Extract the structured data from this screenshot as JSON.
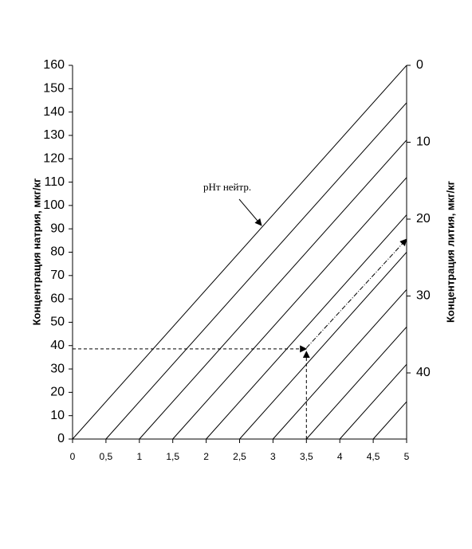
{
  "chart_data": {
    "type": "line",
    "ylabel": "Концентрация натрия, мкг/кг",
    "y2label": "Концентрация лития, мкг/кг",
    "annotation": "pHт нейтр.",
    "xlim": [
      0,
      5
    ],
    "ylim": [
      0,
      160
    ],
    "y2lim": [
      0,
      48.6
    ],
    "y2_inverted": true,
    "xticks": [
      0,
      {
        "value": 0.5,
        "label": "0,5"
      },
      1,
      {
        "value": 1.5,
        "label": "1,5"
      },
      2,
      {
        "value": 2.5,
        "label": "2,5"
      },
      3,
      {
        "value": 3.5,
        "label": "3,5"
      },
      4,
      {
        "value": 4.5,
        "label": "4,5"
      },
      5
    ],
    "yticks": [
      0,
      10,
      20,
      30,
      40,
      50,
      60,
      70,
      80,
      90,
      100,
      110,
      120,
      130,
      140,
      150,
      160
    ],
    "y2ticks": [
      0,
      10,
      20,
      30,
      40
    ],
    "series": [
      {
        "color": "#000000",
        "x": [
          0,
          5
        ],
        "values": [
          0,
          160
        ]
      },
      {
        "color": "#000000",
        "x": [
          0.5,
          5
        ],
        "values": [
          0,
          144
        ]
      },
      {
        "color": "#000000",
        "x": [
          1,
          5
        ],
        "values": [
          0,
          128
        ]
      },
      {
        "color": "#000000",
        "x": [
          1.5,
          5
        ],
        "values": [
          0,
          112
        ]
      },
      {
        "color": "#000000",
        "x": [
          2,
          5
        ],
        "values": [
          0,
          96
        ]
      },
      {
        "color": "#000000",
        "x": [
          2.5,
          5
        ],
        "values": [
          0,
          80
        ]
      },
      {
        "color": "#000000",
        "x": [
          3,
          5
        ],
        "values": [
          0,
          64
        ]
      },
      {
        "color": "#000000",
        "x": [
          3.5,
          5
        ],
        "values": [
          0,
          48
        ]
      },
      {
        "color": "#000000",
        "x": [
          4,
          5
        ],
        "values": [
          0,
          32
        ]
      },
      {
        "color": "#000000",
        "x": [
          4.5,
          5
        ],
        "values": [
          0,
          16
        ]
      },
      {
        "color": "#000000",
        "dash": "4,3",
        "arrow": true,
        "x": [
          0,
          3.5
        ],
        "values": [
          38.6,
          38.6
        ]
      },
      {
        "color": "#000000",
        "dash": "4,3",
        "arrow": true,
        "x": [
          3.5,
          3.5
        ],
        "values": [
          0,
          37.5
        ]
      },
      {
        "color": "#000000",
        "dash": "6,2,1,2",
        "arrow": true,
        "x": [
          3.5,
          5
        ],
        "values": [
          39,
          85.6
        ]
      }
    ]
  }
}
